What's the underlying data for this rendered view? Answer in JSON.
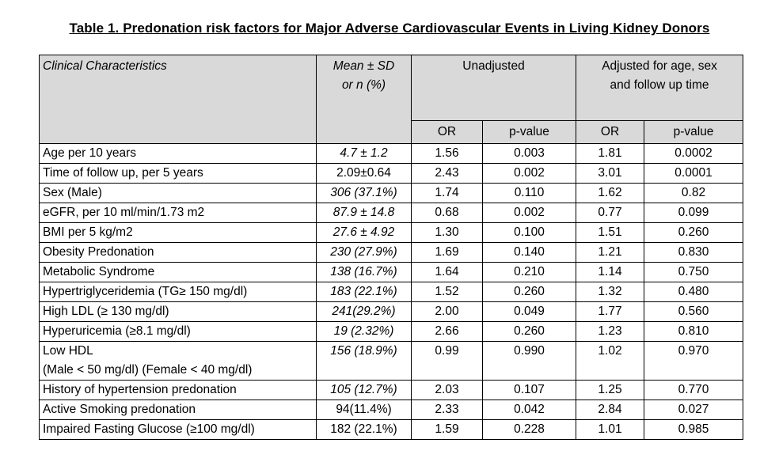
{
  "title": "Table 1. Predonation risk factors for Major Adverse Cardiovascular Events in Living Kidney Donors",
  "headers": {
    "clinical": "Clinical Characteristics",
    "mean_line1": "Mean ± SD",
    "mean_line2": "or n (%)",
    "unadjusted": "Unadjusted",
    "adjusted_line1": "Adjusted  for age, sex",
    "adjusted_line2": "and follow up time",
    "or": "OR",
    "pvalue": "p-value"
  },
  "rows": [
    {
      "label": "Age per 10  years",
      "mean": "4.7 ± 1.2",
      "mean_italic": true,
      "or_u": "1.56",
      "p_u": "0.003",
      "or_a": "1.81",
      "p_a": "0.0002"
    },
    {
      "label": "Time of follow up, per 5 years",
      "mean": "2.09±0.64",
      "mean_italic": false,
      "or_u": "2.43",
      "p_u": "0.002",
      "or_a": "3.01",
      "p_a": "0.0001"
    },
    {
      "label": "Sex (Male)",
      "mean": "306 (37.1%)",
      "mean_italic": true,
      "or_u": "1.74",
      "p_u": "0.110",
      "or_a": "1.62",
      "p_a": "0.82"
    },
    {
      "label": "eGFR, per 10 ml/min/1.73 m2",
      "mean": "87.9 ± 14.8",
      "mean_italic": true,
      "or_u": "0.68",
      "p_u": "0.002",
      "or_a": "0.77",
      "p_a": "0.099"
    },
    {
      "label": "BMI per 5 kg/m2",
      "mean": "27.6 ± 4.92",
      "mean_italic": true,
      "or_u": "1.30",
      "p_u": "0.100",
      "or_a": "1.51",
      "p_a": "0.260"
    },
    {
      "label": "Obesity Predonation",
      "mean": "230 (27.9%)",
      "mean_italic": true,
      "or_u": "1.69",
      "p_u": "0.140",
      "or_a": "1.21",
      "p_a": "0.830"
    },
    {
      "label": "Metabolic Syndrome",
      "mean": "138 (16.7%)",
      "mean_italic": true,
      "or_u": "1.64",
      "p_u": "0.210",
      "or_a": "1.14",
      "p_a": "0.750"
    },
    {
      "label": "Hypertriglyceridemia (TG≥  150 mg/dl)",
      "mean": "183 (22.1%)",
      "mean_italic": true,
      "or_u": "1.52",
      "p_u": "0.260",
      "or_a": "1.32",
      "p_a": "0.480"
    },
    {
      "label": "High LDL (≥ 130 mg/dl)",
      "mean": "241(29.2%)",
      "mean_italic": true,
      "or_u": "2.00",
      "p_u": "0.049",
      "or_a": "1.77",
      "p_a": "0.560"
    },
    {
      "label": "Hyperuricemia (≥8.1 mg/dl)",
      "mean": "19 (2.32%)",
      "mean_italic": true,
      "or_u": "2.66",
      "p_u": "0.260",
      "or_a": "1.23",
      "p_a": "0.810"
    },
    {
      "label": "Low HDL",
      "label2": "(Male < 50 mg/dl) (Female < 40 mg/dl)",
      "mean": "156 (18.9%)",
      "mean_italic": true,
      "or_u": "0.99",
      "p_u": "0.990",
      "or_a": "1.02",
      "p_a": "0.970"
    },
    {
      "label": "History of hypertension predonation",
      "mean": "105 (12.7%)",
      "mean_italic": true,
      "or_u": "2.03",
      "p_u": "0.107",
      "or_a": "1.25",
      "p_a": "0.770"
    },
    {
      "label": "Active Smoking predonation",
      "mean": "94(11.4%)",
      "mean_italic": false,
      "or_u": "2.33",
      "p_u": "0.042",
      "or_a": "2.84",
      "p_a": "0.027"
    },
    {
      "label": "Impaired Fasting Glucose (≥100 mg/dl)",
      "mean": "182 (22.1%)",
      "mean_italic": false,
      "or_u": "1.59",
      "p_u": "0.228",
      "or_a": "1.01",
      "p_a": "0.985"
    }
  ]
}
